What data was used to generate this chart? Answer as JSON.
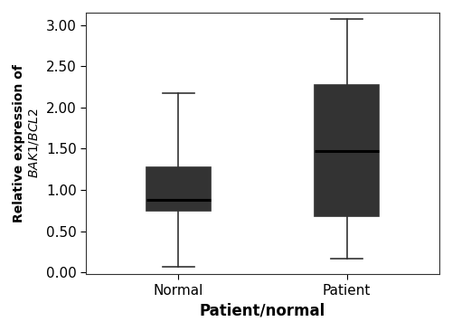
{
  "groups": [
    "Normal",
    "Patient"
  ],
  "normal": {
    "whisker_low": 0.07,
    "q1": 0.75,
    "median": 0.88,
    "q3": 1.27,
    "whisker_high": 2.17
  },
  "patient": {
    "whisker_low": 0.17,
    "q1": 0.68,
    "median": 1.47,
    "q3": 2.27,
    "whisker_high": 3.07
  },
  "box_facecolor": "#aaaaaa",
  "box_edgecolor": "#333333",
  "median_color": "#000000",
  "whisker_color": "#333333",
  "cap_color": "#333333",
  "xlabel": "Patient/normal",
  "ylim": [
    -0.02,
    3.15
  ],
  "yticks": [
    0.0,
    0.5,
    1.0,
    1.5,
    2.0,
    2.5,
    3.0
  ],
  "background_color": "#ffffff",
  "box_width": 0.38,
  "linewidth": 1.2,
  "median_linewidth": 2.2,
  "cap_linewidth": 1.2,
  "positions": [
    1,
    2
  ],
  "xlim": [
    0.45,
    2.55
  ]
}
